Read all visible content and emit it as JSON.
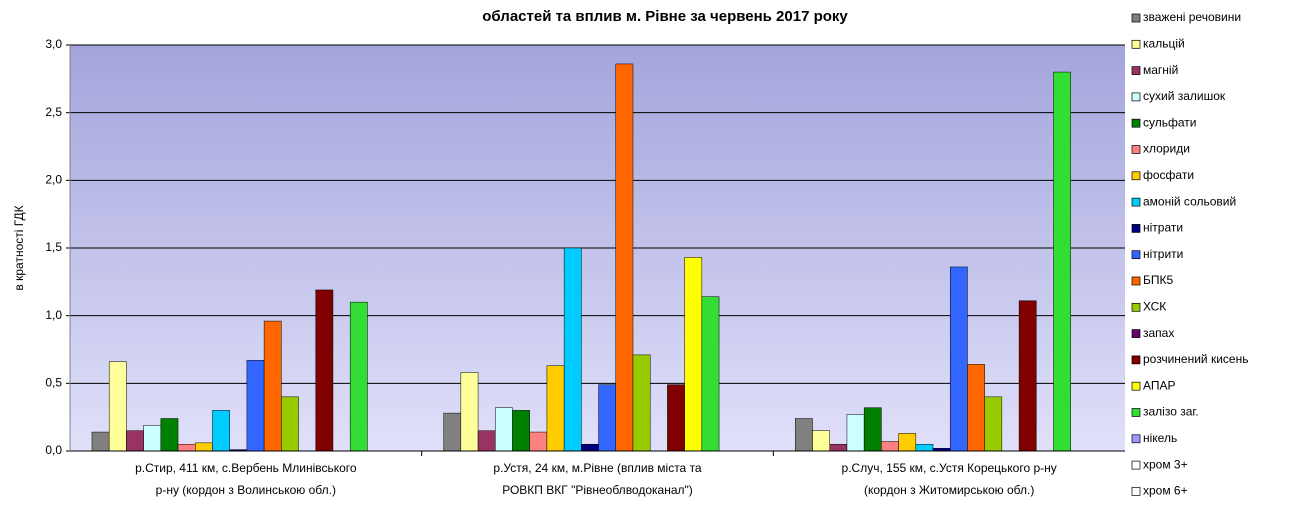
{
  "chart_data": {
    "type": "bar",
    "title": "областей та вплив м. Рівне за червень 2017 року",
    "y_label": "в кратності ГДК",
    "categories": [
      [
        "р.Стир, 411 км, с.Вербень Млинівського",
        "р-ну (кордон з Волинською обл.)"
      ],
      [
        "р.Устя, 24 км, м.Рівне (вплив міста та",
        "РОВКП ВКГ \"Рівнеоблводоканал\")"
      ],
      [
        "р.Случ, 155 км, с.Устя Корецького р-ну",
        "(кордон з Житомирською обл.)"
      ]
    ],
    "ylim": [
      0,
      3
    ],
    "yticks": [
      {
        "value": 0,
        "label": "0,0"
      },
      {
        "value": 0.5,
        "label": "0,5"
      },
      {
        "value": 1,
        "label": "1,0"
      },
      {
        "value": 1.5,
        "label": "1,5"
      },
      {
        "value": 2,
        "label": "2,0"
      },
      {
        "value": 2.5,
        "label": "2,5"
      },
      {
        "value": 3,
        "label": "3,0"
      }
    ],
    "grid": true,
    "legend": "right",
    "series": [
      {
        "name": "зважені речовини",
        "color": "#808080",
        "values": [
          0.14,
          0.28,
          0.24
        ]
      },
      {
        "name": "кальцій",
        "color": "#FFFF99",
        "values": [
          0.66,
          0.58,
          0.15
        ]
      },
      {
        "name": "магній",
        "color": "#993366",
        "values": [
          0.15,
          0.15,
          0.05
        ]
      },
      {
        "name": "сухий залишок",
        "color": "#CCFFFF",
        "values": [
          0.19,
          0.32,
          0.27
        ]
      },
      {
        "name": "сульфати",
        "color": "#008000",
        "values": [
          0.24,
          0.3,
          0.32
        ]
      },
      {
        "name": "хлориди",
        "color": "#FF8080",
        "values": [
          0.05,
          0.14,
          0.07
        ]
      },
      {
        "name": "фосфати",
        "color": "#FFCC00",
        "values": [
          0.06,
          0.63,
          0.13
        ]
      },
      {
        "name": "амоній сольовий",
        "color": "#00CCFF",
        "values": [
          0.3,
          1.5,
          0.05
        ]
      },
      {
        "name": "нітрати",
        "color": "#000080",
        "values": [
          0.01,
          0.05,
          0.02
        ]
      },
      {
        "name": "нітрити",
        "color": "#3366FF",
        "values": [
          0.67,
          0.49,
          1.36
        ]
      },
      {
        "name": "БПК5",
        "color": "#FF6600",
        "values": [
          0.96,
          2.86,
          0.64
        ]
      },
      {
        "name": "ХСК",
        "color": "#99CC00",
        "values": [
          0.4,
          0.71,
          0.4
        ]
      },
      {
        "name": "запах",
        "color": "#660066",
        "values": [
          0,
          0,
          0
        ]
      },
      {
        "name": "розчинений кисень",
        "color": "#800000",
        "values": [
          1.19,
          0.49,
          1.11
        ]
      },
      {
        "name": "АПАР",
        "color": "#FFFF00",
        "values": [
          0,
          1.43,
          0
        ]
      },
      {
        "name": "залізо заг.",
        "color": "#33DD33",
        "values": [
          1.1,
          1.14,
          2.8
        ]
      },
      {
        "name": "нікель",
        "color": "#9999FF",
        "values": [
          0,
          0,
          0
        ]
      },
      {
        "name": "хром 3+",
        "color": "#FFFFFF",
        "values": [
          0,
          0,
          0
        ]
      },
      {
        "name": "хром 6+",
        "color": "#FFFFFF",
        "values": [
          0,
          0,
          0
        ]
      }
    ]
  }
}
